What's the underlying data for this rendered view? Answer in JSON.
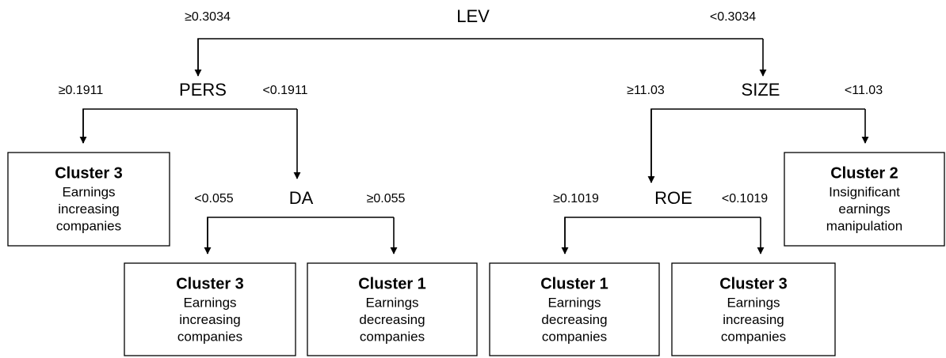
{
  "nodes": [
    {
      "label": "LEV",
      "left": "≥0.3034",
      "right": "<0.3034"
    },
    {
      "label": "PERS",
      "left": "≥0.1911",
      "right": "<0.1911"
    },
    {
      "label": "DA",
      "left": "<0.055",
      "right": "≥0.055"
    },
    {
      "label": "SIZE",
      "left": "≥11.03",
      "right": "<11.03"
    },
    {
      "label": "ROE",
      "left": "≥0.1019",
      "right": "<0.1019"
    }
  ],
  "leaves": [
    {
      "title": "Cluster 3",
      "text": [
        "Earnings",
        "increasing",
        "companies"
      ]
    },
    {
      "title": "Cluster 3",
      "text": [
        "Earnings",
        "increasing",
        "companies"
      ]
    },
    {
      "title": "Cluster 1",
      "text": [
        "Earnings",
        "decreasing",
        "companies"
      ]
    },
    {
      "title": "Cluster 1",
      "text": [
        "Earnings",
        "decreasing",
        "companies"
      ]
    },
    {
      "title": "Cluster 3",
      "text": [
        "Earnings",
        "increasing",
        "companies"
      ]
    },
    {
      "title": "Cluster 2",
      "text": [
        "Insignificant",
        "earnings",
        "manipulation"
      ]
    }
  ]
}
